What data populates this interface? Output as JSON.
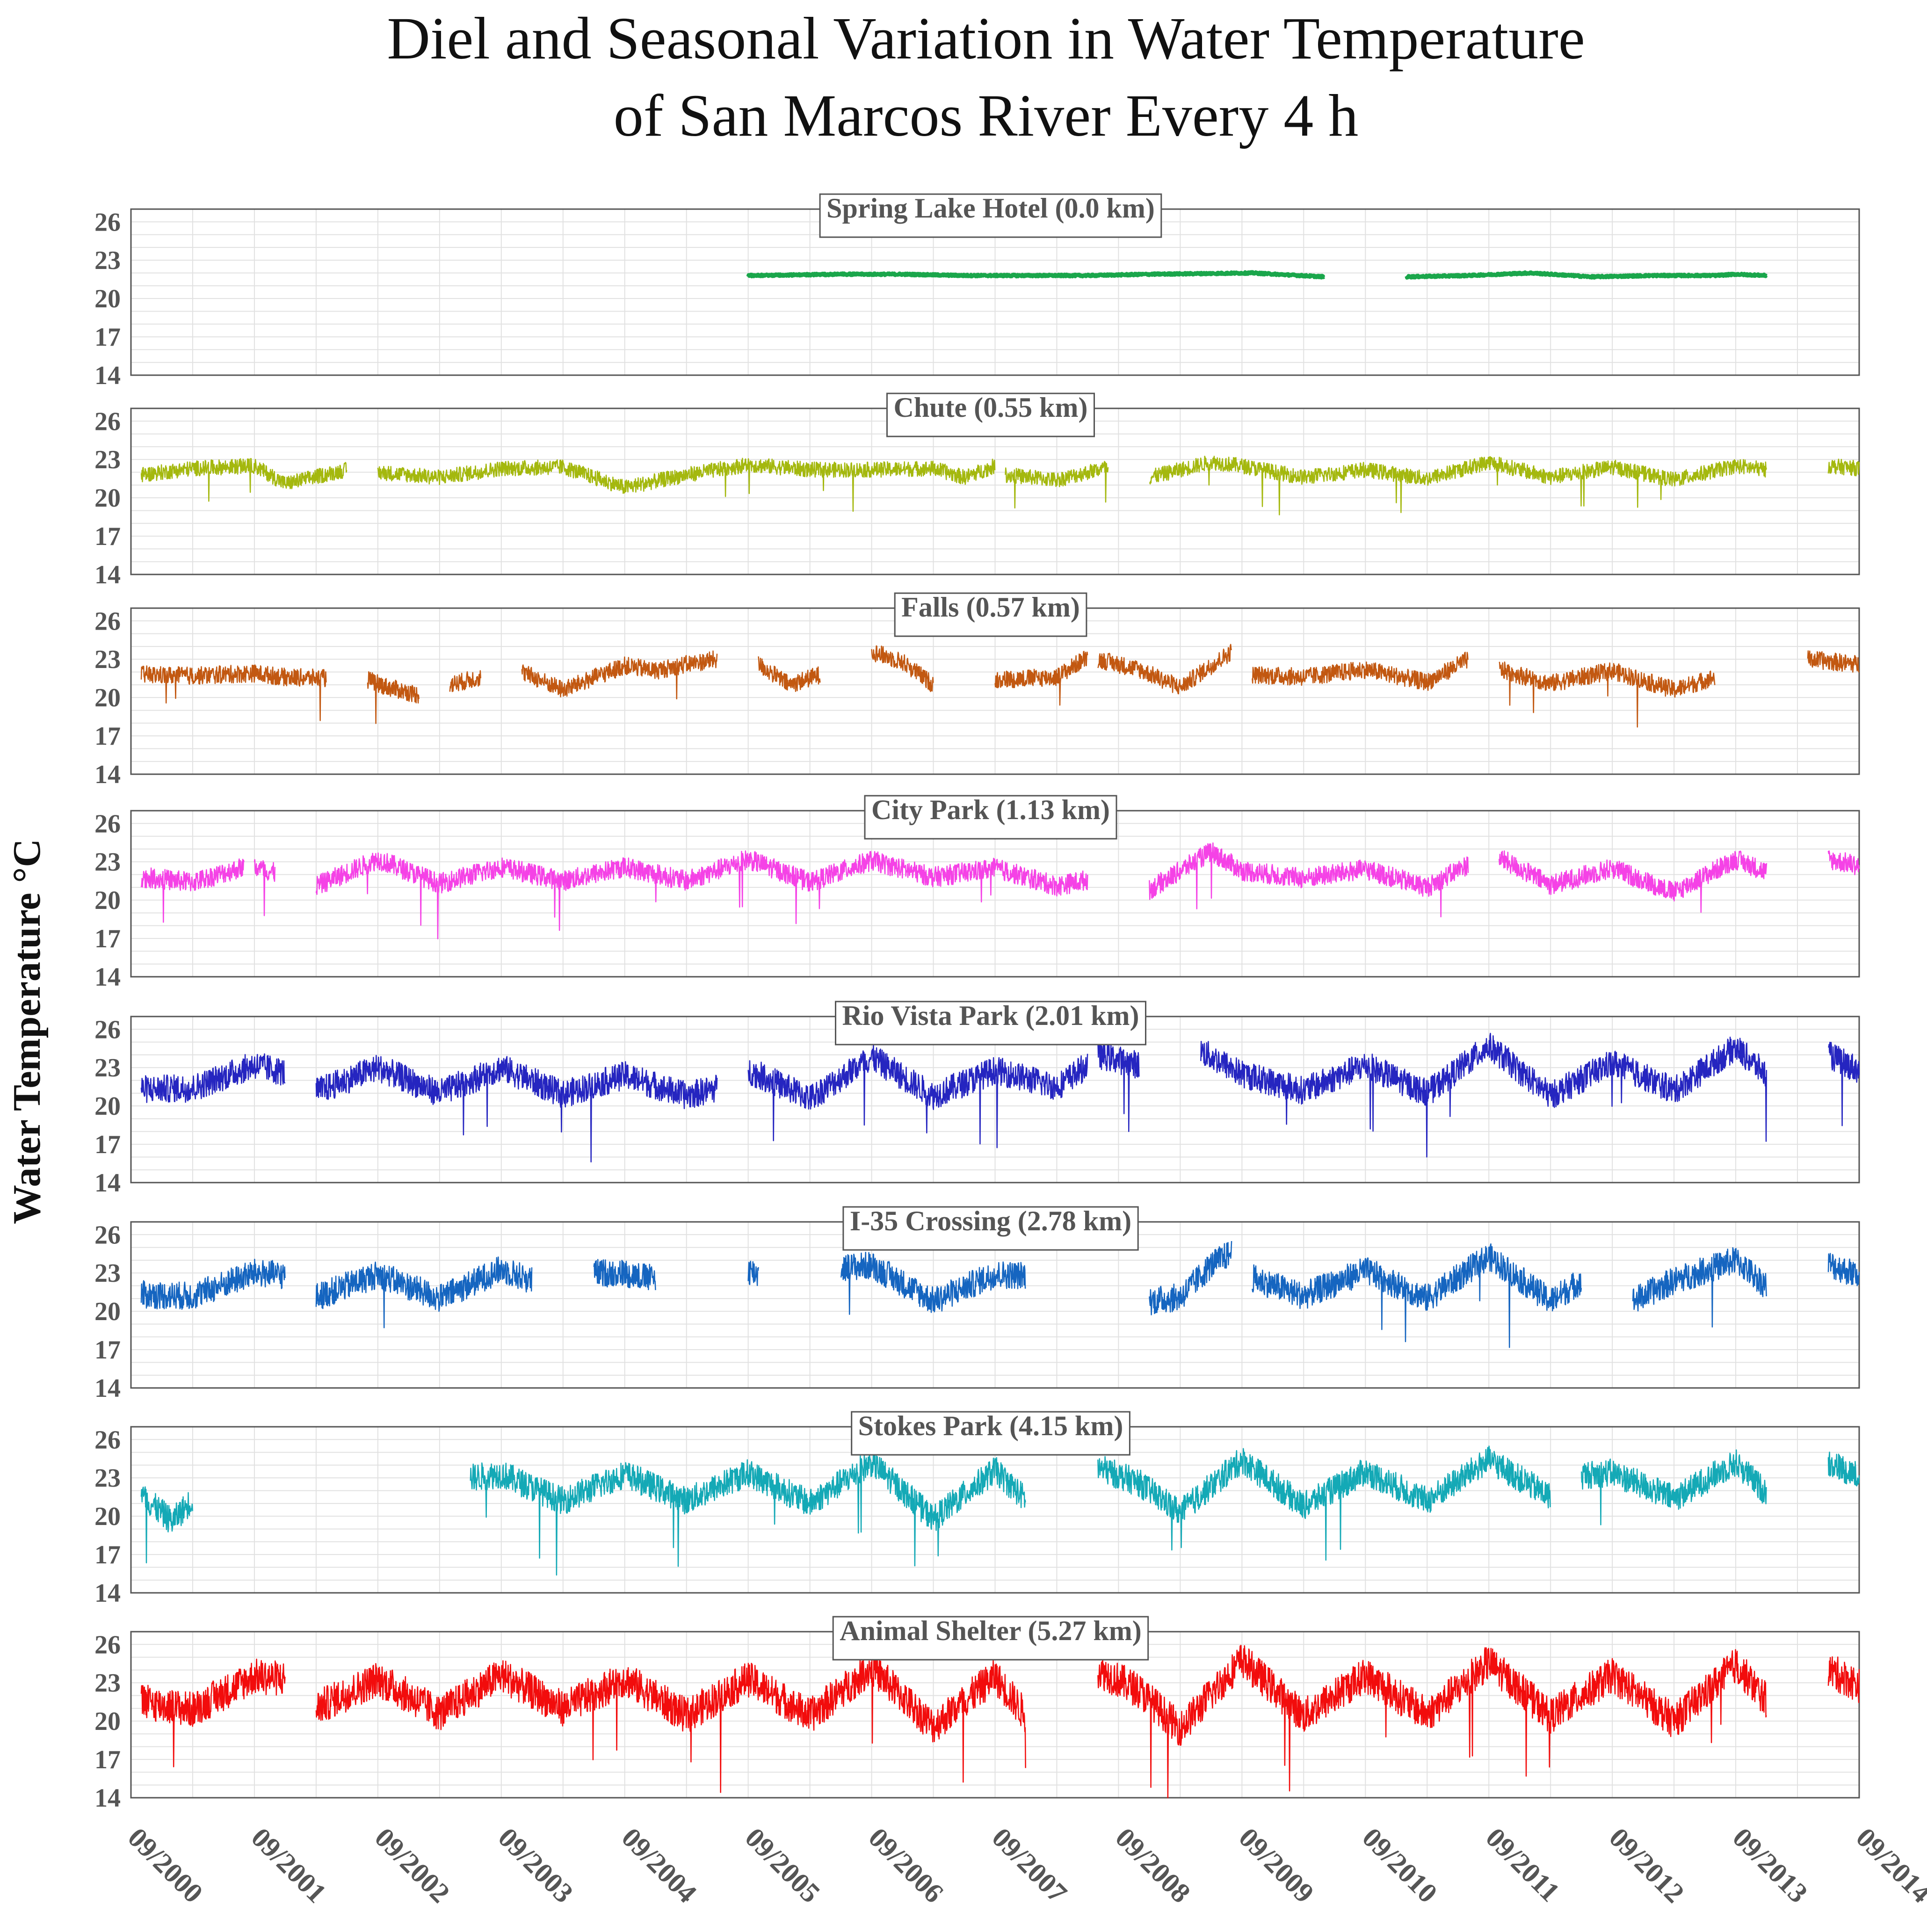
{
  "chart_data": {
    "type": "line",
    "title": "Diel and Seasonal Variation in Water Temperature",
    "subtitle": "of San Marcos River Every 4 h",
    "ylabel": "Water Temperature °C",
    "xlabel": "",
    "ylim": [
      14,
      27
    ],
    "yticks": [
      14,
      17,
      20,
      23,
      26
    ],
    "xlim": [
      "09/2000",
      "09/2014"
    ],
    "xticks": [
      "09/2000",
      "09/2001",
      "09/2002",
      "09/2003",
      "09/2004",
      "09/2005",
      "09/2006",
      "09/2007",
      "09/2008",
      "09/2009",
      "09/2010",
      "09/2011",
      "09/2012",
      "09/2013",
      "09/2014"
    ],
    "grid": true,
    "panels": [
      {
        "label": "Spring Lake Hotel (0.0 km)",
        "color": "#1aa64b",
        "amplitude": 0.08,
        "segments": [
          {
            "x": [
              "09/2005",
              "06/2006",
              "12/2006",
              "06/2007",
              "12/2007",
              "06/2008",
              "12/2008",
              "10/2009",
              "05/2010"
            ],
            "y": [
              21.8,
              21.9,
              21.9,
              21.8,
              21.8,
              21.8,
              21.9,
              22.0,
              21.7
            ]
          },
          {
            "x": [
              "01/2011",
              "07/2011",
              "01/2012",
              "07/2012",
              "01/2013",
              "07/2013",
              "09/2013",
              "12/2013"
            ],
            "y": [
              21.7,
              21.8,
              22.0,
              21.7,
              21.8,
              21.8,
              21.9,
              21.8
            ]
          }
        ]
      },
      {
        "label": "Chute (0.55 km)",
        "color": "#a4b80e",
        "amplitude": 0.6,
        "segments": [
          {
            "x": [
              "10/2000",
              "03/2001",
              "09/2001",
              "12/2001",
              "06/2002"
            ],
            "y": [
              21.8,
              22.3,
              22.5,
              21.1,
              22.2
            ]
          },
          {
            "x": [
              "09/2002",
              "03/2003",
              "09/2003",
              "03/2004",
              "09/2004",
              "03/2005",
              "09/2005",
              "03/2006",
              "09/2006",
              "03/2007",
              "06/2007",
              "09/2007"
            ],
            "y": [
              22.0,
              21.6,
              22.3,
              22.4,
              20.8,
              21.8,
              22.6,
              22.2,
              22.2,
              22.3,
              21.6,
              22.5
            ]
          },
          {
            "x": [
              "10/2007",
              "03/2008",
              "08/2008"
            ],
            "y": [
              21.8,
              21.4,
              22.4
            ]
          },
          {
            "x": [
              "12/2008",
              "06/2009",
              "09/2009",
              "03/2010",
              "09/2010",
              "03/2011",
              "09/2011",
              "03/2012",
              "09/2012",
              "03/2013",
              "09/2013",
              "12/2013"
            ],
            "y": [
              21.6,
              22.8,
              22.5,
              21.6,
              22.2,
              21.5,
              22.8,
              21.6,
              22.4,
              21.4,
              22.5,
              22.2
            ]
          },
          {
            "x": [
              "06/2014",
              "09/2014"
            ],
            "y": [
              22.5,
              22.3
            ]
          }
        ]
      },
      {
        "label": "Falls (0.57 km)",
        "color": "#c25811",
        "amplitude": 0.7,
        "segments": [
          {
            "x": [
              "10/2000",
              "03/2001",
              "09/2001",
              "12/2001",
              "04/2002"
            ],
            "y": [
              21.8,
              21.7,
              21.9,
              21.6,
              21.5
            ]
          },
          {
            "x": [
              "08/2002",
              "10/2002",
              "01/2003"
            ],
            "y": [
              21.4,
              20.8,
              20.2
            ]
          },
          {
            "x": [
              "04/2003",
              "07/2003"
            ],
            "y": [
              21.0,
              21.6
            ]
          },
          {
            "x": [
              "11/2003",
              "03/2004",
              "09/2004",
              "12/2004",
              "03/2005",
              "06/2005"
            ],
            "y": [
              22.0,
              20.6,
              22.5,
              22.1,
              22.6,
              23.0
            ]
          },
          {
            "x": [
              "10/2005",
              "01/2006",
              "04/2006"
            ],
            "y": [
              22.6,
              21.0,
              21.8
            ]
          },
          {
            "x": [
              "09/2006",
              "12/2006",
              "03/2007"
            ],
            "y": [
              23.6,
              22.8,
              21.0
            ]
          },
          {
            "x": [
              "09/2007",
              "03/2008",
              "06/2008"
            ],
            "y": [
              21.4,
              21.6,
              23.2
            ]
          },
          {
            "x": [
              "07/2008",
              "11/2008",
              "03/2009",
              "08/2009"
            ],
            "y": [
              23.0,
              22.2,
              20.8,
              23.6
            ]
          },
          {
            "x": [
              "10/2009",
              "03/2010",
              "09/2010",
              "03/2011",
              "07/2011"
            ],
            "y": [
              21.8,
              21.6,
              22.2,
              21.2,
              23.0
            ]
          },
          {
            "x": [
              "10/2011",
              "03/2012",
              "09/2012",
              "03/2013",
              "07/2013"
            ],
            "y": [
              22.2,
              21.1,
              22.1,
              20.6,
              21.6
            ]
          },
          {
            "x": [
              "04/2014",
              "09/2014"
            ],
            "y": [
              23.0,
              22.6
            ]
          }
        ]
      },
      {
        "label": "City Park (1.13 km)",
        "color": "#f542e6",
        "amplitude": 0.8,
        "segments": [
          {
            "x": [
              "10/2000",
              "03/2001",
              "08/2001"
            ],
            "y": [
              21.8,
              21.4,
              22.6
            ]
          },
          {
            "x": [
              "09/2001",
              "11/2001"
            ],
            "y": [
              22.6,
              22.1
            ]
          },
          {
            "x": [
              "03/2002",
              "09/2002",
              "03/2003",
              "09/2003",
              "03/2004",
              "09/2004",
              "03/2005",
              "09/2005",
              "03/2006",
              "09/2006",
              "03/2007",
              "09/2007",
              "03/2008",
              "06/2008"
            ],
            "y": [
              21.1,
              23.2,
              21.3,
              22.6,
              21.5,
              22.6,
              21.5,
              23.2,
              21.4,
              23.1,
              21.8,
              22.5,
              21.1,
              21.6
            ]
          },
          {
            "x": [
              "12/2008",
              "06/2009",
              "09/2009",
              "03/2010",
              "09/2010",
              "03/2011",
              "07/2011"
            ],
            "y": [
              20.8,
              23.8,
              22.3,
              21.7,
              22.4,
              21.0,
              22.8
            ]
          },
          {
            "x": [
              "10/2011",
              "03/2012",
              "09/2012",
              "03/2013",
              "09/2013",
              "12/2013"
            ],
            "y": [
              23.3,
              21.2,
              22.5,
              20.6,
              23.2,
              22.2
            ]
          },
          {
            "x": [
              "06/2014",
              "09/2014"
            ],
            "y": [
              23.2,
              22.7
            ]
          }
        ]
      },
      {
        "label": "Rio Vista Park (2.01 km)",
        "color": "#2525c0",
        "amplitude": 1.1,
        "segments": [
          {
            "x": [
              "10/2000",
              "03/2001",
              "09/2001",
              "12/2001"
            ],
            "y": [
              21.3,
              21.4,
              23.2,
              22.6
            ]
          },
          {
            "x": [
              "03/2002",
              "09/2002",
              "03/2003",
              "09/2003",
              "03/2004",
              "09/2004",
              "03/2005",
              "06/2005"
            ],
            "y": [
              21.1,
              23.0,
              21.0,
              23.0,
              20.9,
              22.4,
              20.8,
              21.4
            ]
          },
          {
            "x": [
              "09/2005",
              "03/2006",
              "09/2006",
              "03/2007",
              "09/2007",
              "03/2008",
              "06/2008"
            ],
            "y": [
              22.8,
              20.6,
              23.8,
              20.8,
              22.8,
              21.5,
              23.2
            ]
          },
          {
            "x": [
              "07/2008",
              "11/2008"
            ],
            "y": [
              24.0,
              23.2
            ]
          },
          {
            "x": [
              "05/2009",
              "09/2009",
              "03/2010",
              "09/2010",
              "03/2011",
              "09/2011",
              "03/2012",
              "09/2012",
              "03/2013",
              "09/2013",
              "12/2013"
            ],
            "y": [
              24.3,
              22.5,
              21.2,
              23.2,
              21.0,
              24.7,
              20.8,
              23.4,
              21.2,
              24.6,
              22.4
            ]
          },
          {
            "x": [
              "06/2014",
              "09/2014"
            ],
            "y": [
              24.0,
              22.8
            ]
          }
        ]
      },
      {
        "label": "I-35 Crossing (2.78 km)",
        "color": "#1565c0",
        "amplitude": 1.1,
        "segments": [
          {
            "x": [
              "10/2000",
              "03/2001",
              "09/2001",
              "12/2001"
            ],
            "y": [
              21.3,
              21.2,
              23.0,
              22.8
            ]
          },
          {
            "x": [
              "03/2002",
              "09/2002",
              "03/2003",
              "09/2003",
              "12/2003"
            ],
            "y": [
              21.1,
              22.9,
              21.0,
              23.3,
              22.4
            ]
          },
          {
            "x": [
              "06/2004",
              "09/2004",
              "12/2004"
            ],
            "y": [
              23.0,
              23.0,
              22.5
            ]
          },
          {
            "x": [
              "09/2005",
              "10/2005"
            ],
            "y": [
              23.2,
              22.9
            ]
          },
          {
            "x": [
              "06/2006",
              "09/2006",
              "03/2007",
              "09/2007",
              "12/2007"
            ],
            "y": [
              23.4,
              23.6,
              20.8,
              22.9,
              22.8
            ]
          },
          {
            "x": [
              "12/2008",
              "03/2009",
              "06/2009",
              "08/2009"
            ],
            "y": [
              20.8,
              21.1,
              23.6,
              24.6
            ]
          },
          {
            "x": [
              "10/2009",
              "03/2010",
              "09/2010",
              "03/2011",
              "09/2011",
              "03/2012",
              "06/2012"
            ],
            "y": [
              22.6,
              21.2,
              23.2,
              21.0,
              24.3,
              20.8,
              22.4
            ]
          },
          {
            "x": [
              "11/2012",
              "03/2013",
              "09/2013",
              "12/2013"
            ],
            "y": [
              20.8,
              22.4,
              24.0,
              22.0
            ]
          },
          {
            "x": [
              "06/2014",
              "09/2014"
            ],
            "y": [
              23.7,
              22.8
            ]
          }
        ]
      },
      {
        "label": "Stokes Park (4.15 km)",
        "color": "#14a9b6",
        "amplitude": 1.1,
        "segments": [
          {
            "x": [
              "10/2000",
              "01/2001",
              "03/2001"
            ],
            "y": [
              21.6,
              19.6,
              21.3
            ]
          },
          {
            "x": [
              "06/2003",
              "09/2003",
              "03/2004",
              "09/2004",
              "03/2005",
              "09/2005",
              "03/2006",
              "09/2006",
              "03/2007",
              "09/2007",
              "12/2007"
            ],
            "y": [
              23.0,
              23.3,
              21.2,
              23.3,
              21.2,
              23.4,
              21.0,
              24.2,
              19.8,
              23.6,
              21.3
            ]
          },
          {
            "x": [
              "07/2008",
              "11/2008",
              "03/2009",
              "09/2009",
              "03/2010",
              "09/2010",
              "03/2011",
              "09/2011",
              "03/2012"
            ],
            "y": [
              23.8,
              22.6,
              20.3,
              24.4,
              20.8,
              23.5,
              21.2,
              24.4,
              21.5
            ]
          },
          {
            "x": [
              "06/2012",
              "09/2012",
              "03/2013",
              "09/2013",
              "12/2013"
            ],
            "y": [
              23.2,
              23.4,
              21.4,
              24.2,
              21.8
            ]
          },
          {
            "x": [
              "06/2014",
              "09/2014"
            ],
            "y": [
              24.2,
              23.2
            ]
          }
        ]
      },
      {
        "label": "Animal Shelter (5.27 km)",
        "color": "#f20c0c",
        "amplitude": 1.4,
        "segments": [
          {
            "x": [
              "10/2000",
              "03/2001",
              "09/2001",
              "12/2001"
            ],
            "y": [
              21.5,
              20.9,
              23.5,
              23.3
            ]
          },
          {
            "x": [
              "03/2002",
              "09/2002",
              "03/2003",
              "09/2003",
              "03/2004",
              "09/2004",
              "03/2005",
              "09/2005",
              "03/2006",
              "09/2006",
              "03/2007",
              "09/2007",
              "12/2007"
            ],
            "y": [
              21.0,
              23.3,
              20.6,
              23.6,
              21.0,
              23.3,
              20.4,
              23.3,
              20.4,
              24.2,
              19.6,
              23.5,
              20.4
            ]
          },
          {
            "x": [
              "07/2008",
              "11/2008",
              "03/2009",
              "09/2009",
              "03/2010",
              "09/2010",
              "03/2011",
              "09/2011",
              "03/2012",
              "09/2012",
              "03/2013",
              "09/2013",
              "12/2013"
            ],
            "y": [
              24.0,
              22.4,
              19.4,
              24.8,
              20.4,
              23.6,
              20.5,
              24.6,
              20.4,
              23.6,
              20.0,
              24.4,
              21.6
            ]
          },
          {
            "x": [
              "06/2014",
              "09/2014"
            ],
            "y": [
              24.0,
              22.8
            ]
          }
        ]
      }
    ]
  }
}
